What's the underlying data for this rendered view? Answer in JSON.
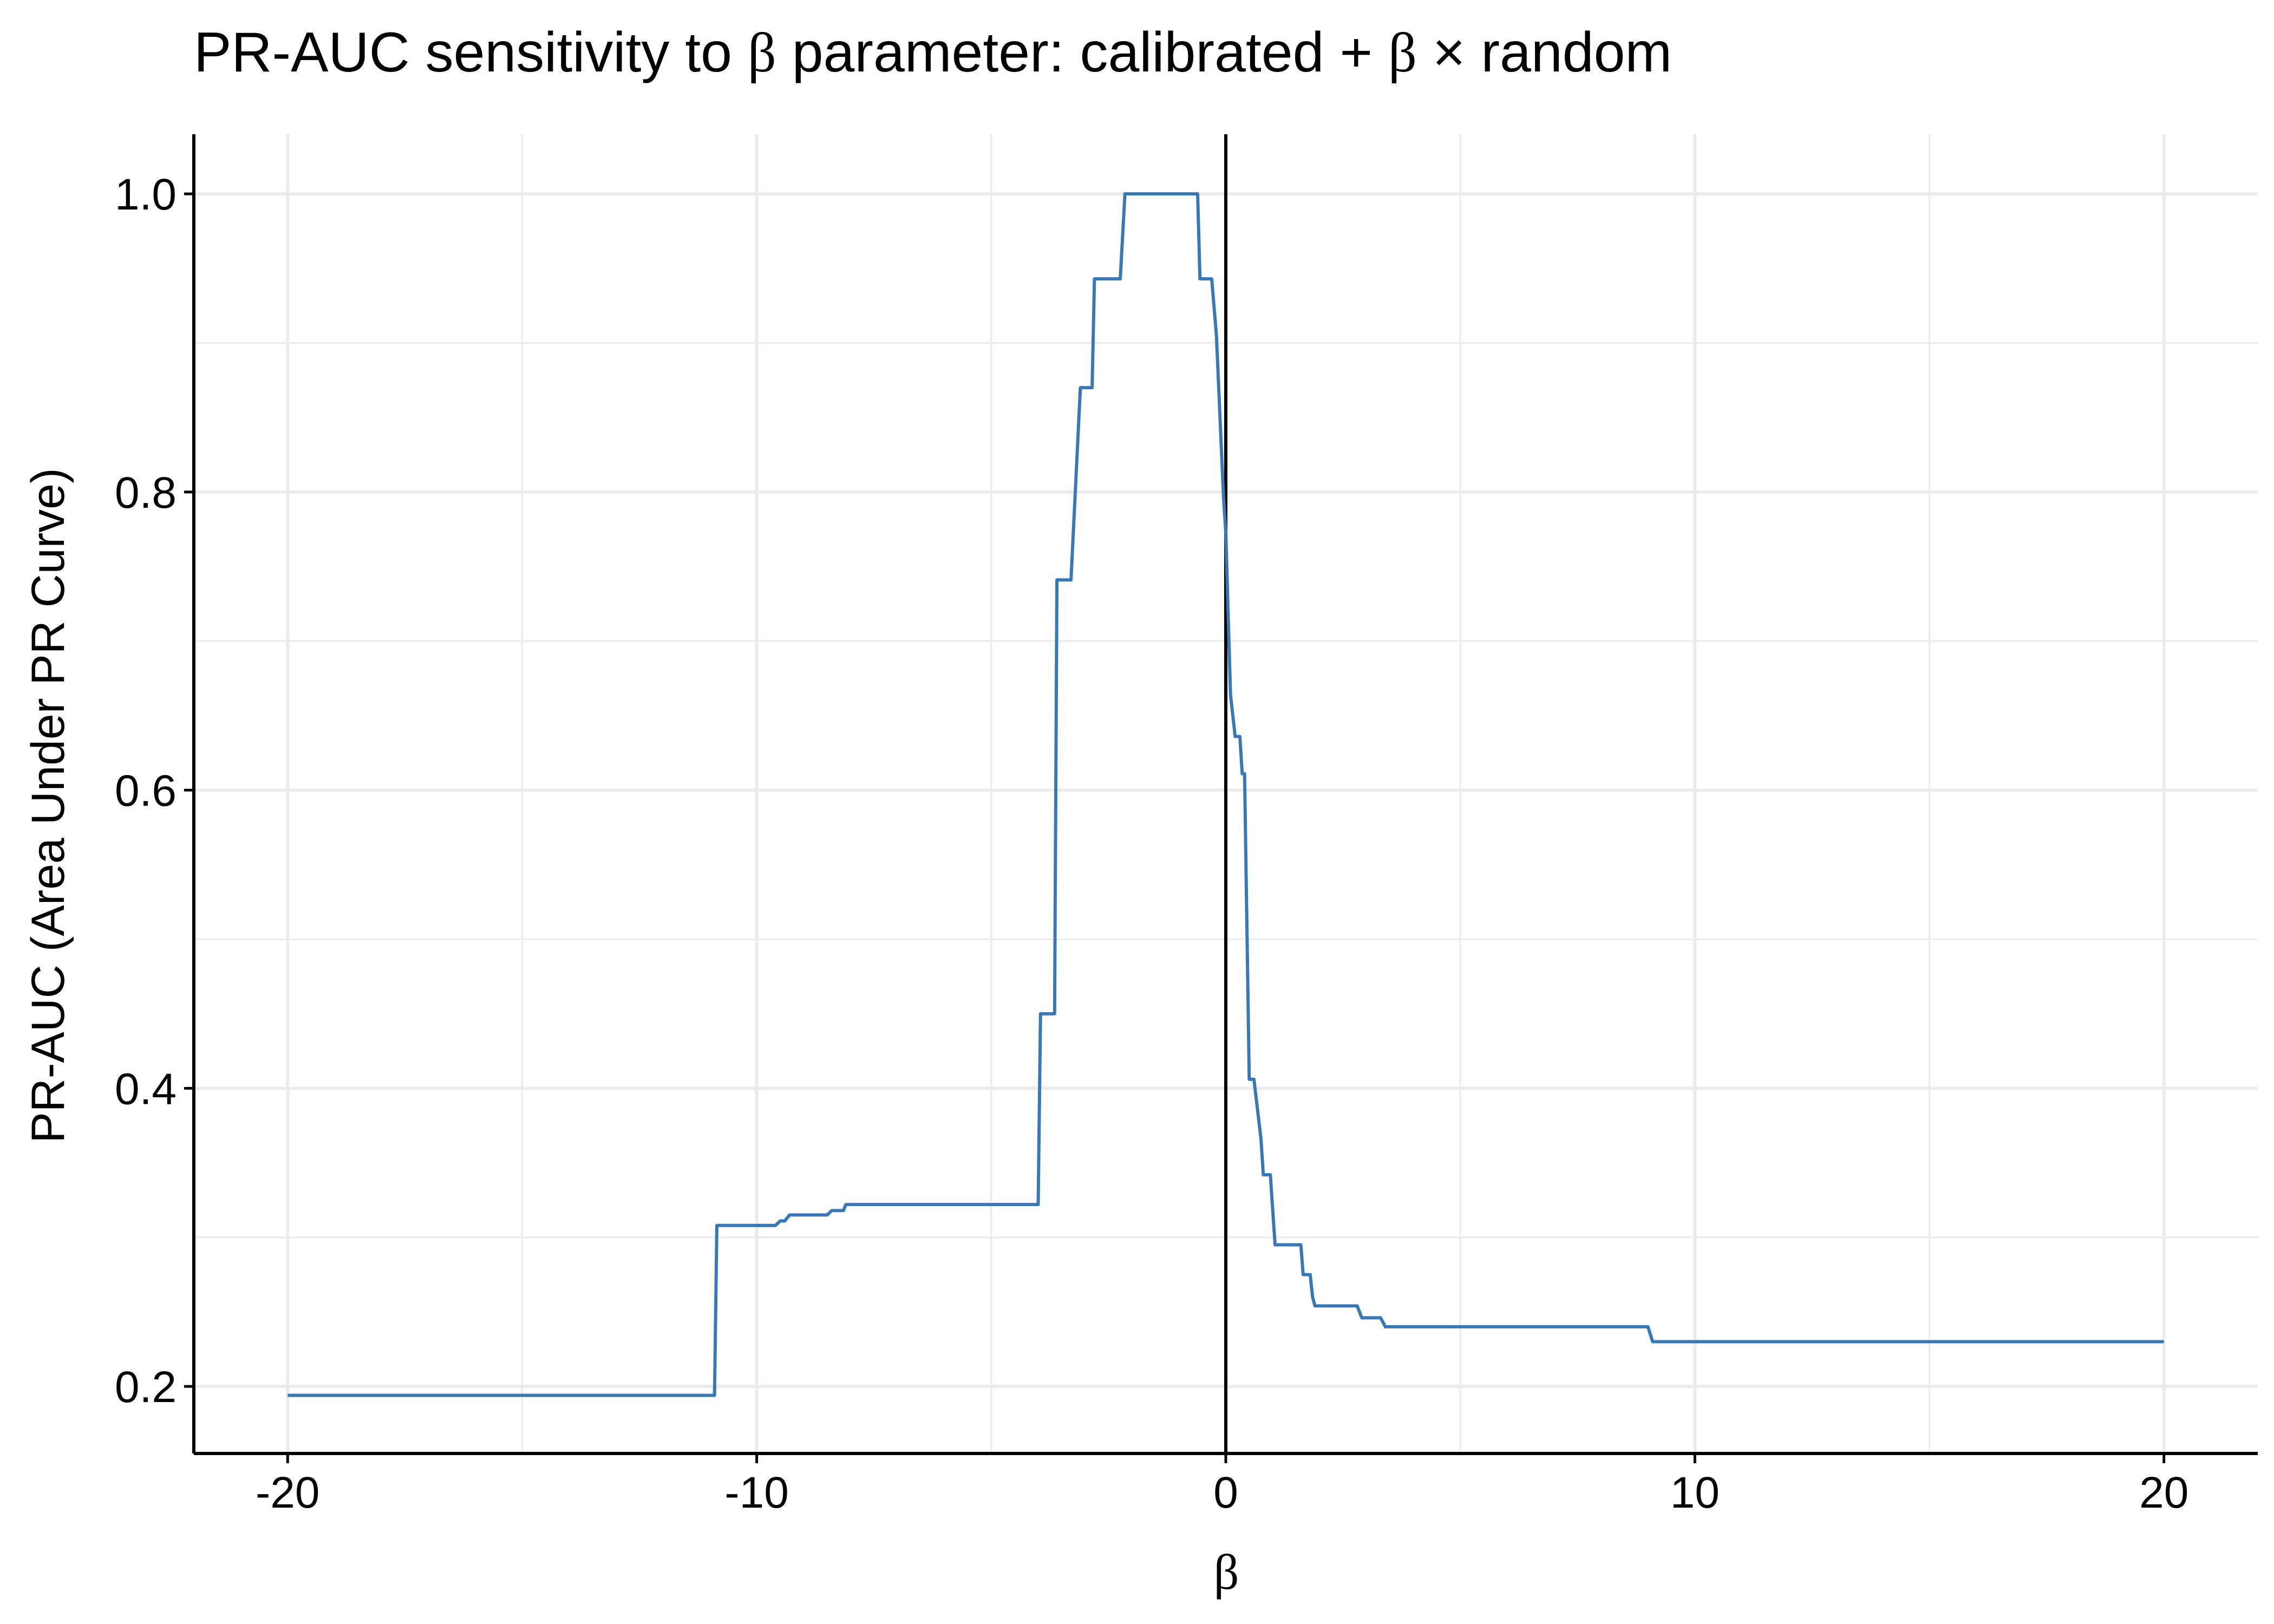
{
  "chart_data": {
    "type": "line",
    "title": {
      "pre": "PR-AUC sensitivity to ",
      "beta1": "β",
      "mid": " parameter: calibrated",
      "plus": " + ",
      "beta2": "β",
      "times": " × ",
      "post": "random"
    },
    "xlabel": "β",
    "ylabel": "PR-AUC (Area Under PR Curve)",
    "xlim": [
      -22,
      22
    ],
    "ylim": [
      0.155,
      1.04
    ],
    "x_ticks": [
      -20,
      -10,
      0,
      10,
      20
    ],
    "x_tick_labels": [
      "-20",
      "-10",
      "0",
      "10",
      "20"
    ],
    "y_ticks": [
      0.2,
      0.4,
      0.6,
      0.8,
      1.0
    ],
    "y_tick_labels": [
      "0.2",
      "0.4",
      "0.6",
      "0.8",
      "1.0"
    ],
    "x_minor": [
      -15,
      -5,
      5,
      15
    ],
    "y_minor": [
      0.3,
      0.5,
      0.7,
      0.9
    ],
    "grid": true,
    "reference_line_x": 0,
    "line_color": "#3a78b5",
    "series": [
      {
        "x": [
          -20,
          -10.9,
          -10.85,
          -9.6,
          -9.5,
          -9.4,
          -9.3,
          -8.5,
          -8.4,
          -8.15,
          -8.1,
          -5.0,
          -4.0,
          -3.95,
          -3.9,
          -3.65,
          -3.6,
          -3.35,
          -3.3,
          -3.1,
          -3.05,
          -2.85,
          -2.8,
          -2.6,
          -2.5,
          -2.25,
          -2.15,
          -1.0,
          -0.6,
          -0.55,
          -0.3,
          -0.2,
          -0.05,
          0.0,
          0.1,
          0.2,
          0.3,
          0.35,
          0.4,
          0.5,
          0.55,
          0.6,
          0.75,
          0.8,
          0.95,
          1.05,
          1.1,
          1.2,
          1.35,
          1.6,
          1.65,
          1.8,
          1.85,
          1.9,
          2.0,
          2.8,
          2.9,
          3.2,
          3.3,
          3.4,
          8.0,
          9.0,
          9.1,
          20
        ],
        "y": [
          0.194,
          0.194,
          0.308,
          0.308,
          0.311,
          0.311,
          0.315,
          0.315,
          0.318,
          0.318,
          0.322,
          0.322,
          0.322,
          0.45,
          0.45,
          0.45,
          0.741,
          0.741,
          0.741,
          0.87,
          0.87,
          0.87,
          0.943,
          0.943,
          0.943,
          0.943,
          1.0,
          1.0,
          1.0,
          0.943,
          0.943,
          0.905,
          0.797,
          0.773,
          0.664,
          0.636,
          0.636,
          0.611,
          0.611,
          0.406,
          0.406,
          0.406,
          0.366,
          0.342,
          0.342,
          0.295,
          0.295,
          0.295,
          0.295,
          0.295,
          0.275,
          0.275,
          0.26,
          0.254,
          0.254,
          0.254,
          0.246,
          0.246,
          0.246,
          0.24,
          0.24,
          0.24,
          0.23,
          0.23
        ]
      }
    ]
  }
}
